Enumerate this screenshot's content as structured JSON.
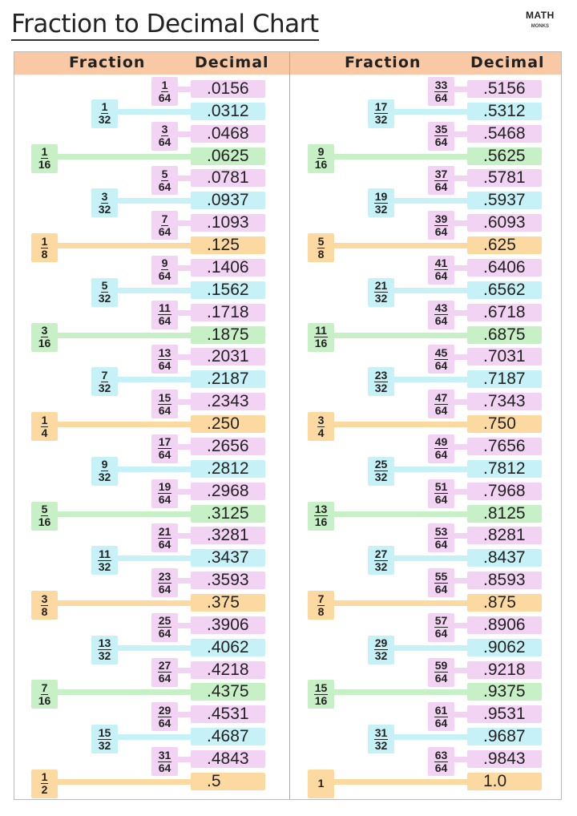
{
  "title": "Fraction to Decimal Chart",
  "logo": {
    "line1": "MATH",
    "line2": "MONKS"
  },
  "headers": {
    "fraction": "Fraction",
    "decimal": "Decimal"
  },
  "colors": {
    "header": "#f9c9a6",
    "d64": "#f3d3f4",
    "d32": "#c6f1f7",
    "d16": "#c7f0c6",
    "d8": "#fdd9a2"
  },
  "columns": [
    [
      {
        "n": "1",
        "d": "64",
        "dec": ".0156"
      },
      {
        "n": "1",
        "d": "32",
        "dec": ".0312"
      },
      {
        "n": "3",
        "d": "64",
        "dec": ".0468"
      },
      {
        "n": "1",
        "d": "16",
        "dec": ".0625"
      },
      {
        "n": "5",
        "d": "64",
        "dec": ".0781"
      },
      {
        "n": "3",
        "d": "32",
        "dec": ".0937"
      },
      {
        "n": "7",
        "d": "64",
        "dec": ".1093"
      },
      {
        "n": "1",
        "d": "8",
        "dec": ".125"
      },
      {
        "n": "9",
        "d": "64",
        "dec": ".1406"
      },
      {
        "n": "5",
        "d": "32",
        "dec": ".1562"
      },
      {
        "n": "11",
        "d": "64",
        "dec": ".1718"
      },
      {
        "n": "3",
        "d": "16",
        "dec": ".1875"
      },
      {
        "n": "13",
        "d": "64",
        "dec": ".2031"
      },
      {
        "n": "7",
        "d": "32",
        "dec": ".2187"
      },
      {
        "n": "15",
        "d": "64",
        "dec": ".2343"
      },
      {
        "n": "1",
        "d": "4",
        "dec": ".250"
      },
      {
        "n": "17",
        "d": "64",
        "dec": ".2656"
      },
      {
        "n": "9",
        "d": "32",
        "dec": ".2812"
      },
      {
        "n": "19",
        "d": "64",
        "dec": ".2968"
      },
      {
        "n": "5",
        "d": "16",
        "dec": ".3125"
      },
      {
        "n": "21",
        "d": "64",
        "dec": ".3281"
      },
      {
        "n": "11",
        "d": "32",
        "dec": ".3437"
      },
      {
        "n": "23",
        "d": "64",
        "dec": ".3593"
      },
      {
        "n": "3",
        "d": "8",
        "dec": ".375"
      },
      {
        "n": "25",
        "d": "64",
        "dec": ".3906"
      },
      {
        "n": "13",
        "d": "32",
        "dec": ".4062"
      },
      {
        "n": "27",
        "d": "64",
        "dec": ".4218"
      },
      {
        "n": "7",
        "d": "16",
        "dec": ".4375"
      },
      {
        "n": "29",
        "d": "64",
        "dec": ".4531"
      },
      {
        "n": "15",
        "d": "32",
        "dec": ".4687"
      },
      {
        "n": "31",
        "d": "64",
        "dec": ".4843"
      },
      {
        "n": "1",
        "d": "2",
        "dec": ".5"
      }
    ],
    [
      {
        "n": "33",
        "d": "64",
        "dec": ".5156"
      },
      {
        "n": "17",
        "d": "32",
        "dec": ".5312"
      },
      {
        "n": "35",
        "d": "64",
        "dec": ".5468"
      },
      {
        "n": "9",
        "d": "16",
        "dec": ".5625"
      },
      {
        "n": "37",
        "d": "64",
        "dec": ".5781"
      },
      {
        "n": "19",
        "d": "32",
        "dec": ".5937"
      },
      {
        "n": "39",
        "d": "64",
        "dec": ".6093"
      },
      {
        "n": "5",
        "d": "8",
        "dec": ".625"
      },
      {
        "n": "41",
        "d": "64",
        "dec": ".6406"
      },
      {
        "n": "21",
        "d": "32",
        "dec": ".6562"
      },
      {
        "n": "43",
        "d": "64",
        "dec": ".6718"
      },
      {
        "n": "11",
        "d": "16",
        "dec": ".6875"
      },
      {
        "n": "45",
        "d": "64",
        "dec": ".7031"
      },
      {
        "n": "23",
        "d": "32",
        "dec": ".7187"
      },
      {
        "n": "47",
        "d": "64",
        "dec": ".7343"
      },
      {
        "n": "3",
        "d": "4",
        "dec": ".750"
      },
      {
        "n": "49",
        "d": "64",
        "dec": ".7656"
      },
      {
        "n": "25",
        "d": "32",
        "dec": ".7812"
      },
      {
        "n": "51",
        "d": "64",
        "dec": ".7968"
      },
      {
        "n": "13",
        "d": "16",
        "dec": ".8125"
      },
      {
        "n": "53",
        "d": "64",
        "dec": ".8281"
      },
      {
        "n": "27",
        "d": "32",
        "dec": ".8437"
      },
      {
        "n": "55",
        "d": "64",
        "dec": ".8593"
      },
      {
        "n": "7",
        "d": "8",
        "dec": ".875"
      },
      {
        "n": "57",
        "d": "64",
        "dec": ".8906"
      },
      {
        "n": "29",
        "d": "32",
        "dec": ".9062"
      },
      {
        "n": "59",
        "d": "64",
        "dec": ".9218"
      },
      {
        "n": "15",
        "d": "16",
        "dec": ".9375"
      },
      {
        "n": "61",
        "d": "64",
        "dec": ".9531"
      },
      {
        "n": "31",
        "d": "32",
        "dec": ".9687"
      },
      {
        "n": "63",
        "d": "64",
        "dec": ".9843"
      },
      {
        "n": "1",
        "d": "",
        "dec": "1.0"
      }
    ]
  ]
}
